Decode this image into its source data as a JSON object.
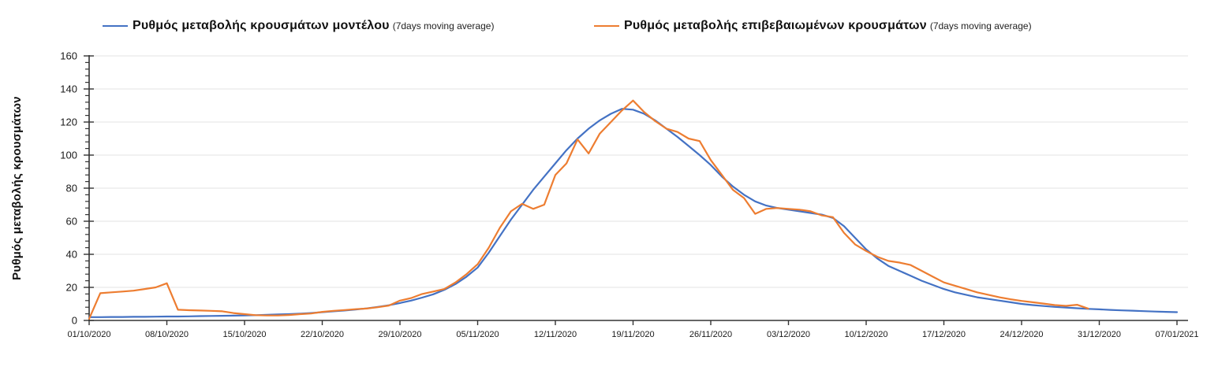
{
  "legend": {
    "items": [
      {
        "label": "Ρυθμός μεταβολής κρουσμάτων μοντέλου",
        "note": "(7days moving average)",
        "color": "#4472C4"
      },
      {
        "label": "Ρυθμός μεταβολής επιβεβαιωμένων κρουσμάτων",
        "note": "(7days moving average)",
        "color": "#ED7D31"
      }
    ]
  },
  "chart_data": {
    "type": "line",
    "title": "",
    "xlabel": "",
    "ylabel": "Ρυθμός μεταβολής κρουσμάτων",
    "ylim": [
      0,
      160
    ],
    "y_ticks": [
      0,
      20,
      40,
      60,
      80,
      100,
      120,
      140,
      160
    ],
    "y_minor_tick_step": 4,
    "grid": "horizontal",
    "legend_position": "top",
    "x_unit": "days",
    "x_tick_interval_days": 7,
    "x_ticks": [
      "01/10/2020",
      "08/10/2020",
      "15/10/2020",
      "22/10/2020",
      "29/10/2020",
      "05/11/2020",
      "12/11/2020",
      "19/11/2020",
      "26/11/2020",
      "03/12/2020",
      "10/12/2020",
      "17/12/2020",
      "24/12/2020",
      "31/12/2020",
      "07/01/2021"
    ],
    "colors": {
      "grid": "#E3E3E3",
      "axis": "#333333",
      "model": "#4472C4",
      "confirmed": "#ED7D31"
    },
    "series": [
      {
        "name": "Ρυθμός μεταβολής κρουσμάτων μοντέλου (7days moving average)",
        "data_name": "model-series-line",
        "color": "#4472C4",
        "start_date": "01/10/2020",
        "end_date": "07/01/2021",
        "values": [
          2,
          2,
          2.1,
          2.1,
          2.2,
          2.2,
          2.3,
          2.4,
          2.4,
          2.5,
          2.6,
          2.7,
          2.8,
          2.9,
          3,
          3.2,
          3.4,
          3.6,
          3.8,
          4.1,
          4.5,
          5,
          5.5,
          6,
          6.6,
          7.3,
          8.2,
          9.2,
          10.5,
          12,
          13.8,
          15.8,
          18.5,
          22,
          26.5,
          32,
          41,
          51,
          61,
          70,
          79,
          87,
          95,
          103,
          110,
          116,
          121,
          125,
          128,
          127.5,
          125,
          121,
          116,
          111,
          105.5,
          100,
          94,
          87,
          81,
          76,
          72,
          69.5,
          68,
          67,
          66,
          65,
          64,
          62,
          57,
          50,
          43,
          37.5,
          33,
          30,
          27,
          24,
          21.5,
          19,
          17,
          15.5,
          14,
          13,
          12,
          11,
          10,
          9.3,
          8.7,
          8.2,
          7.8,
          7.4,
          7,
          6.7,
          6.4,
          6.1,
          5.9,
          5.6,
          5.4,
          5.2,
          5
        ]
      },
      {
        "name": "Ρυθμός μεταβολής επιβεβαιωμένων κρουσμάτων (7days moving average)",
        "data_name": "confirmed-series-line",
        "color": "#ED7D31",
        "start_date": "01/10/2020",
        "end_date": "30/12/2020",
        "values": [
          1,
          16.5,
          17,
          17.5,
          18,
          19,
          20,
          22.5,
          6.5,
          6.2,
          6,
          5.8,
          5.5,
          4.5,
          3.8,
          3.2,
          3,
          3,
          3.3,
          3.8,
          4.2,
          5.2,
          5.8,
          6.3,
          6.8,
          7.2,
          8,
          9,
          12,
          13.5,
          16,
          17.5,
          19,
          23,
          28,
          34,
          44,
          56,
          66,
          70.5,
          67.5,
          70,
          88,
          95,
          109.5,
          101,
          113,
          120,
          127,
          133,
          126,
          120.5,
          116,
          114,
          110,
          108.5,
          97,
          88,
          79,
          74,
          64.5,
          67.5,
          68,
          67.5,
          67,
          66,
          63.5,
          62.5,
          53,
          46,
          42,
          38.5,
          36,
          35,
          33.5,
          30,
          26.5,
          23,
          21,
          19,
          17,
          15.5,
          14,
          12.8,
          11.8,
          11,
          10.2,
          9.3,
          8.8,
          9.5,
          7.2
        ]
      }
    ]
  }
}
